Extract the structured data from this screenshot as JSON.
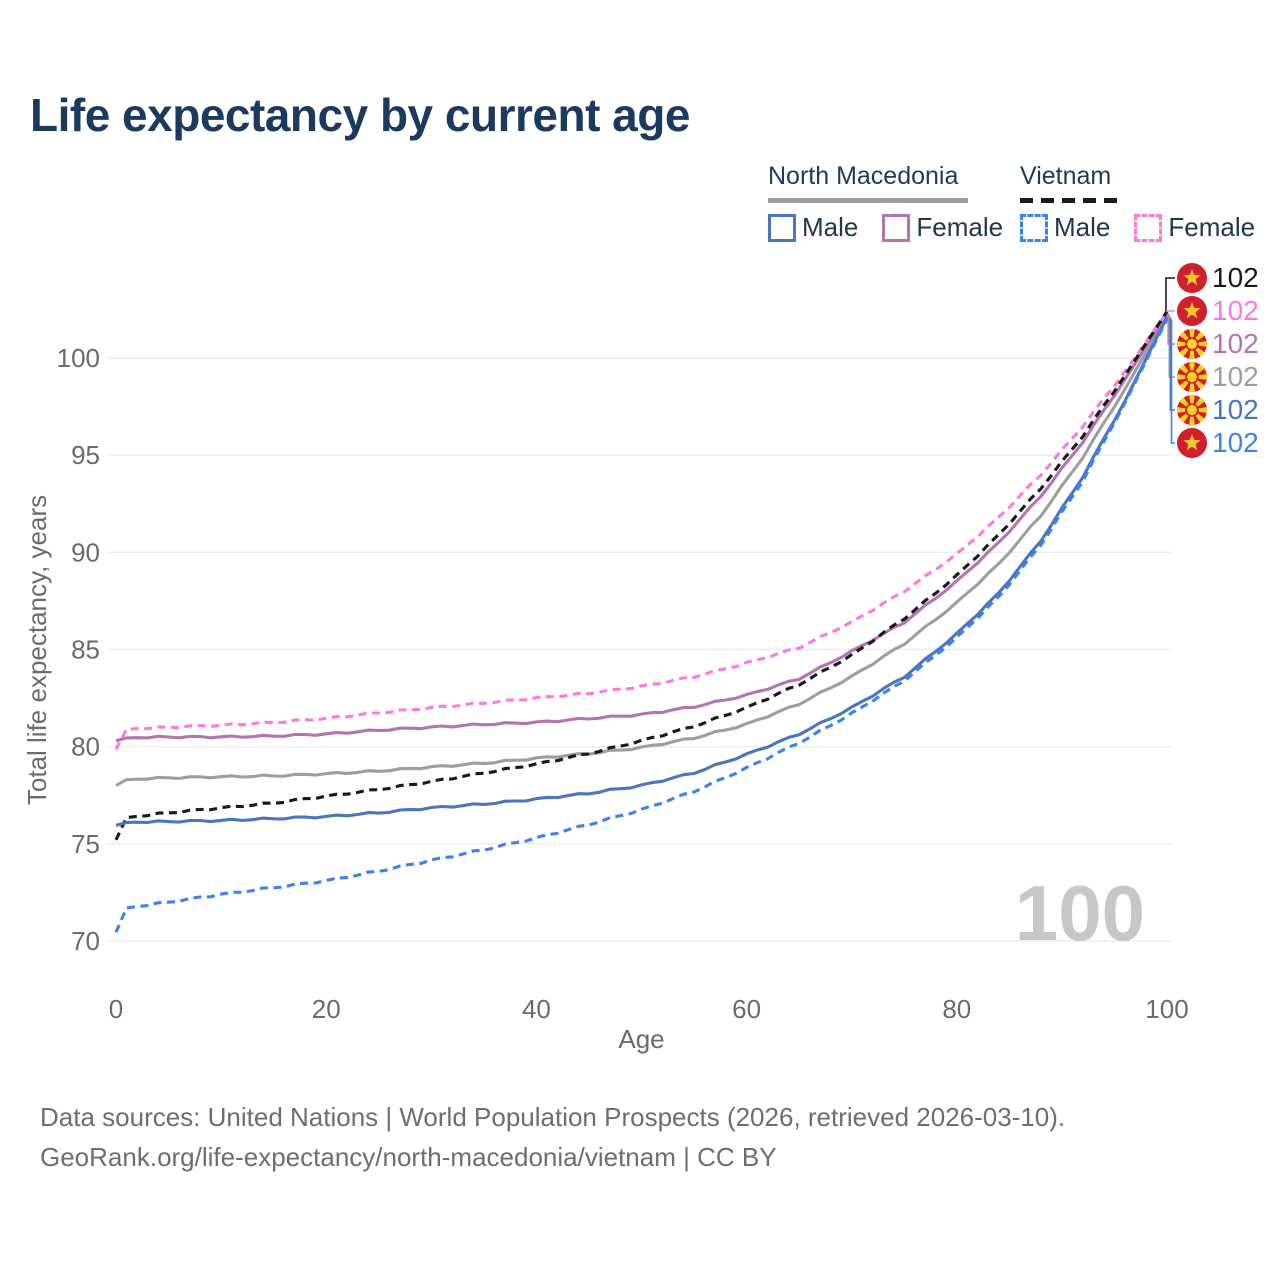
{
  "title": "Life expectancy by current age",
  "legend": {
    "groups": [
      {
        "label": "North Macedonia",
        "line_style": "solid",
        "underline_color": "#9e9e9e",
        "items": [
          {
            "label": "Male",
            "color": "#4a76bb",
            "dash": false
          },
          {
            "label": "Female",
            "color": "#b474b4",
            "dash": false
          }
        ]
      },
      {
        "label": "Vietnam",
        "line_style": "dashed",
        "underline_color": "#1a1a1a",
        "items": [
          {
            "label": "Male",
            "color": "#3b82f0",
            "dash": true
          },
          {
            "label": "Female",
            "color": "#fc7ae0",
            "dash": true
          }
        ]
      }
    ]
  },
  "chart_data": {
    "type": "line",
    "title": "Life expectancy by current age",
    "xlabel": "Age",
    "ylabel": "Total life expectancy, years",
    "xlim": [
      0,
      100
    ],
    "ylim": [
      70,
      100
    ],
    "xticks": [
      0,
      20,
      40,
      60,
      80,
      100
    ],
    "yticks": [
      70,
      75,
      80,
      85,
      90,
      95,
      100
    ],
    "grid": "horizontal-only",
    "legend_position": "top-right",
    "watermark": "100",
    "series": [
      {
        "name": "North Macedonia",
        "country": "North Macedonia",
        "sex": "Total",
        "color": "#9e9e9e",
        "dash": false,
        "flag": "mk",
        "end_label": "102",
        "points": [
          [
            0,
            78.0
          ],
          [
            1,
            78.3
          ],
          [
            5,
            78.4
          ],
          [
            10,
            78.45
          ],
          [
            15,
            78.5
          ],
          [
            20,
            78.6
          ],
          [
            25,
            78.75
          ],
          [
            30,
            78.95
          ],
          [
            35,
            79.15
          ],
          [
            40,
            79.4
          ],
          [
            45,
            79.65
          ],
          [
            50,
            79.95
          ],
          [
            55,
            80.45
          ],
          [
            60,
            81.15
          ],
          [
            65,
            82.2
          ],
          [
            70,
            83.6
          ],
          [
            75,
            85.3
          ],
          [
            80,
            87.4
          ],
          [
            84,
            89.4
          ],
          [
            88,
            91.9
          ],
          [
            92,
            94.9
          ],
          [
            96,
            98.4
          ],
          [
            100,
            102.2
          ]
        ]
      },
      {
        "name": "North Macedonia Female",
        "country": "North Macedonia",
        "sex": "Female",
        "color": "#b474b4",
        "dash": false,
        "flag": "mk",
        "end_label": "102",
        "points": [
          [
            0,
            80.3
          ],
          [
            1,
            80.45
          ],
          [
            5,
            80.5
          ],
          [
            10,
            80.5
          ],
          [
            15,
            80.55
          ],
          [
            20,
            80.65
          ],
          [
            25,
            80.85
          ],
          [
            30,
            81.0
          ],
          [
            35,
            81.15
          ],
          [
            40,
            81.25
          ],
          [
            45,
            81.45
          ],
          [
            50,
            81.65
          ],
          [
            55,
            82.05
          ],
          [
            60,
            82.65
          ],
          [
            65,
            83.5
          ],
          [
            70,
            84.9
          ],
          [
            75,
            86.4
          ],
          [
            80,
            88.5
          ],
          [
            84,
            90.5
          ],
          [
            88,
            92.9
          ],
          [
            92,
            95.7
          ],
          [
            96,
            98.9
          ],
          [
            100,
            102.3
          ]
        ]
      },
      {
        "name": "Vietnam Female",
        "country": "Vietnam",
        "sex": "Female",
        "color": "#fc7ae0",
        "dash": true,
        "flag": "vn",
        "end_label": "102",
        "points": [
          [
            0,
            79.85
          ],
          [
            1,
            80.9
          ],
          [
            5,
            81.0
          ],
          [
            10,
            81.1
          ],
          [
            15,
            81.25
          ],
          [
            20,
            81.45
          ],
          [
            25,
            81.75
          ],
          [
            30,
            82.0
          ],
          [
            35,
            82.25
          ],
          [
            40,
            82.5
          ],
          [
            45,
            82.75
          ],
          [
            50,
            83.1
          ],
          [
            55,
            83.6
          ],
          [
            60,
            84.3
          ],
          [
            65,
            85.1
          ],
          [
            70,
            86.4
          ],
          [
            75,
            88.0
          ],
          [
            80,
            89.9
          ],
          [
            84,
            91.8
          ],
          [
            88,
            94.0
          ],
          [
            92,
            96.5
          ],
          [
            96,
            99.3
          ],
          [
            100,
            102.35
          ]
        ]
      },
      {
        "name": "Vietnam",
        "country": "Vietnam",
        "sex": "Total",
        "color": "#1a1a1a",
        "dash": true,
        "flag": "vn",
        "end_label": "102",
        "points": [
          [
            0,
            75.2
          ],
          [
            1,
            76.35
          ],
          [
            5,
            76.6
          ],
          [
            10,
            76.85
          ],
          [
            15,
            77.1
          ],
          [
            20,
            77.45
          ],
          [
            25,
            77.8
          ],
          [
            30,
            78.2
          ],
          [
            35,
            78.65
          ],
          [
            40,
            79.1
          ],
          [
            45,
            79.65
          ],
          [
            50,
            80.3
          ],
          [
            55,
            81.05
          ],
          [
            60,
            82.0
          ],
          [
            65,
            83.2
          ],
          [
            70,
            84.7
          ],
          [
            75,
            86.6
          ],
          [
            80,
            88.8
          ],
          [
            84,
            90.9
          ],
          [
            88,
            93.3
          ],
          [
            92,
            96.0
          ],
          [
            96,
            99.1
          ],
          [
            100,
            102.4
          ]
        ]
      },
      {
        "name": "North Macedonia Male",
        "country": "North Macedonia",
        "sex": "Male",
        "color": "#4a76bb",
        "dash": false,
        "flag": "mk",
        "end_label": "102",
        "points": [
          [
            0,
            75.95
          ],
          [
            1,
            76.1
          ],
          [
            5,
            76.15
          ],
          [
            10,
            76.2
          ],
          [
            15,
            76.3
          ],
          [
            20,
            76.4
          ],
          [
            25,
            76.6
          ],
          [
            30,
            76.85
          ],
          [
            35,
            77.05
          ],
          [
            40,
            77.3
          ],
          [
            45,
            77.6
          ],
          [
            50,
            78.0
          ],
          [
            55,
            78.65
          ],
          [
            60,
            79.6
          ],
          [
            65,
            80.65
          ],
          [
            70,
            82.0
          ],
          [
            75,
            83.6
          ],
          [
            80,
            85.8
          ],
          [
            84,
            87.9
          ],
          [
            88,
            90.6
          ],
          [
            92,
            93.9
          ],
          [
            96,
            97.8
          ],
          [
            100,
            102.1
          ]
        ]
      },
      {
        "name": "Vietnam Male",
        "country": "Vietnam",
        "sex": "Male",
        "color": "#3b82f0",
        "dash": true,
        "flag": "vn",
        "end_label": "102",
        "points": [
          [
            0,
            70.45
          ],
          [
            1,
            71.7
          ],
          [
            5,
            72.0
          ],
          [
            10,
            72.4
          ],
          [
            15,
            72.75
          ],
          [
            20,
            73.1
          ],
          [
            25,
            73.6
          ],
          [
            30,
            74.15
          ],
          [
            35,
            74.7
          ],
          [
            40,
            75.3
          ],
          [
            45,
            76.0
          ],
          [
            50,
            76.75
          ],
          [
            55,
            77.7
          ],
          [
            60,
            78.9
          ],
          [
            65,
            80.2
          ],
          [
            70,
            81.7
          ],
          [
            75,
            83.4
          ],
          [
            80,
            85.6
          ],
          [
            84,
            87.7
          ],
          [
            88,
            90.4
          ],
          [
            92,
            93.7
          ],
          [
            96,
            97.7
          ],
          [
            100,
            102.0
          ]
        ]
      }
    ]
  },
  "end_labels": [
    {
      "value": "102",
      "color": "#1a1a1a",
      "flag": "vn",
      "series": "Vietnam"
    },
    {
      "value": "102",
      "color": "#fc7ae0",
      "flag": "vn",
      "series": "Vietnam Female"
    },
    {
      "value": "102",
      "color": "#b474b4",
      "flag": "mk",
      "series": "North Macedonia Female"
    },
    {
      "value": "102",
      "color": "#9e9e9e",
      "flag": "mk",
      "series": "North Macedonia"
    },
    {
      "value": "102",
      "color": "#4a76bb",
      "flag": "mk",
      "series": "North Macedonia Male"
    },
    {
      "value": "102",
      "color": "#3b82f0",
      "flag": "vn",
      "series": "Vietnam Male"
    }
  ],
  "flag_colors": {
    "vn": {
      "bg": "#d0202e",
      "emblem": "#f5c833"
    },
    "mk": {
      "bg": "#ce1f2e",
      "emblem": "#ffd022"
    }
  },
  "axis_text_color": "#6b6b6b",
  "grid_color": "#ececec",
  "watermark_color": "#c7c7c7",
  "footer": {
    "line1": "Data sources: United Nations | World Population Prospects (2026, retrieved 2026-03-10).",
    "line2": "GeoRank.org/life-expectancy/north-macedonia/vietnam | CC BY"
  }
}
